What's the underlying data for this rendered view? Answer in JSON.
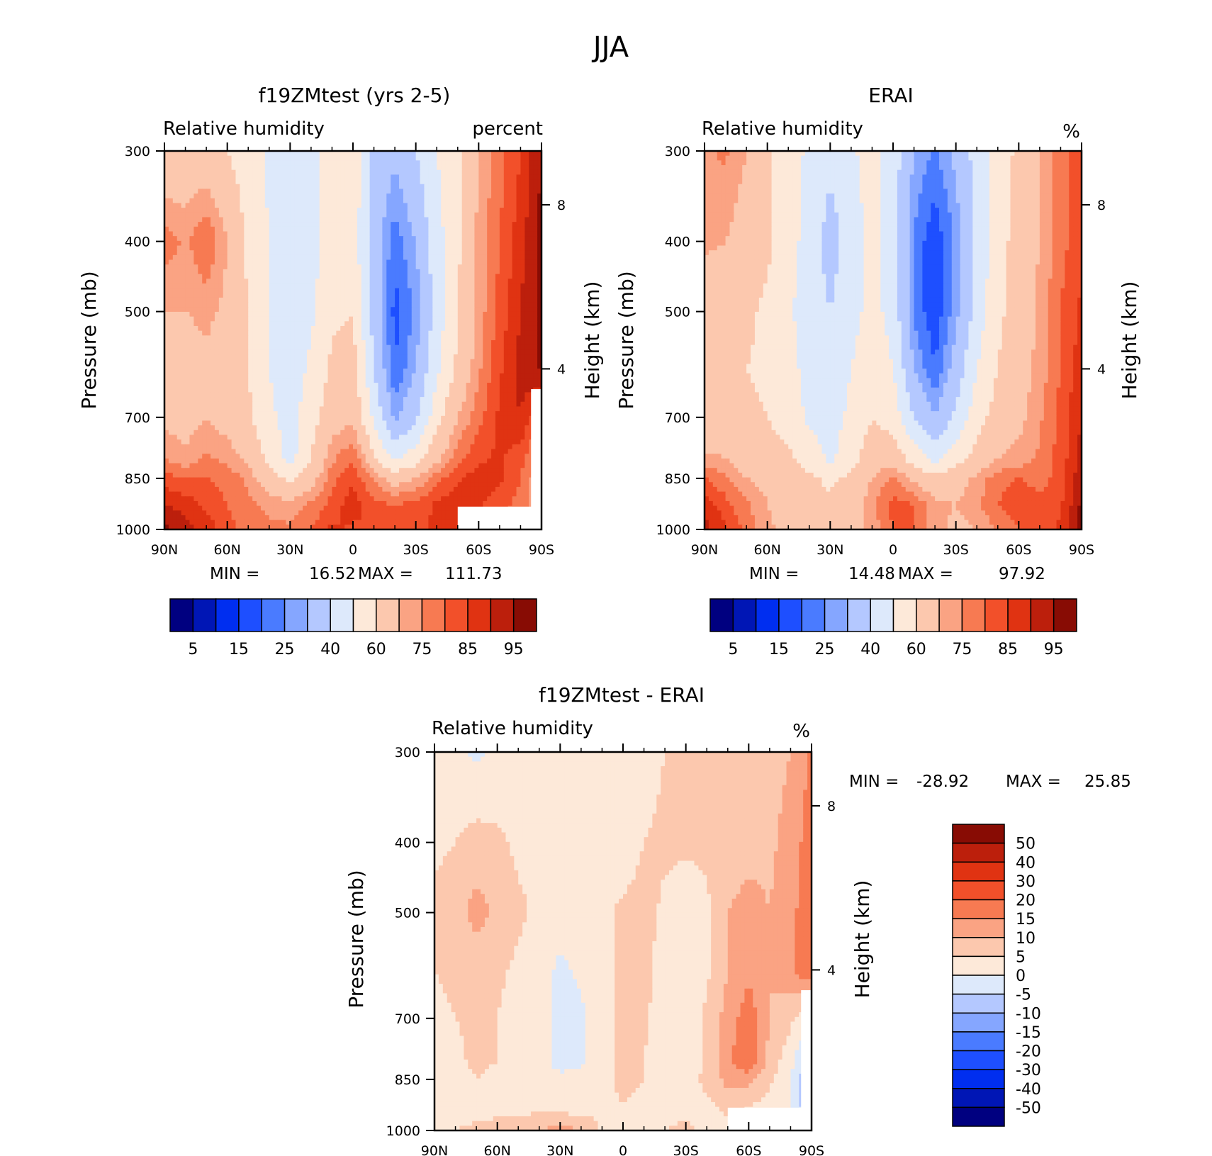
{
  "figure_title": "JJA",
  "chart_data": [
    {
      "type": "heatmap",
      "title": "f19ZMtest (yrs 2-5)",
      "left_label": "Relative humidity",
      "right_label": "percent",
      "xlabel": "",
      "ylabel": "Pressure (mb)",
      "right_axis_label": "Height (km)",
      "x_ticks": [
        "90N",
        "60N",
        "30N",
        "0",
        "30S",
        "60S",
        "90S"
      ],
      "y_ticks": [
        "300",
        "400",
        "500",
        "700",
        "850",
        "1000"
      ],
      "y_tick_values": [
        300,
        400,
        500,
        700,
        850,
        1000
      ],
      "right_ticks": [
        "8",
        "4"
      ],
      "ylim": [
        1000,
        300
      ],
      "xlim": [
        90,
        -90
      ],
      "min_label": "MIN =",
      "min_value": "16.52",
      "max_label": "MAX =",
      "max_value": "111.73",
      "colorbar_labels": [
        "5",
        "15",
        "25",
        "40",
        "60",
        "75",
        "85",
        "95"
      ],
      "field": {
        "lat": [
          90,
          80,
          70,
          60,
          50,
          40,
          30,
          20,
          10,
          0,
          -10,
          -20,
          -30,
          -40,
          -50,
          -60,
          -70,
          -80,
          -90
        ],
        "plev": [
          300,
          400,
          500,
          600,
          700,
          800,
          850,
          925,
          1000
        ],
        "values": [
          [
            62,
            63,
            64,
            60,
            55,
            48,
            43,
            46,
            56,
            58,
            38,
            32,
            40,
            50,
            58,
            70,
            78,
            85,
            95
          ],
          [
            78,
            74,
            80,
            70,
            58,
            50,
            42,
            46,
            56,
            55,
            34,
            22,
            30,
            46,
            58,
            72,
            80,
            88,
            97
          ],
          [
            70,
            70,
            72,
            68,
            60,
            50,
            42,
            48,
            58,
            60,
            36,
            18,
            26,
            44,
            60,
            72,
            82,
            90,
            97
          ],
          [
            66,
            65,
            68,
            64,
            60,
            50,
            44,
            52,
            62,
            64,
            40,
            20,
            30,
            48,
            62,
            74,
            84,
            92,
            96
          ],
          [
            68,
            66,
            70,
            66,
            62,
            52,
            46,
            56,
            66,
            68,
            48,
            28,
            38,
            56,
            70,
            78,
            86,
            90,
            80
          ],
          [
            75,
            72,
            76,
            74,
            68,
            58,
            46,
            60,
            74,
            80,
            62,
            48,
            56,
            68,
            78,
            84,
            86,
            82,
            70
          ],
          [
            82,
            80,
            80,
            78,
            74,
            64,
            58,
            66,
            78,
            84,
            74,
            66,
            70,
            78,
            84,
            88,
            86,
            80,
            70
          ],
          [
            90,
            88,
            84,
            80,
            76,
            74,
            72,
            76,
            82,
            88,
            82,
            80,
            82,
            86,
            88,
            86,
            82,
            78,
            70
          ],
          [
            96,
            92,
            88,
            82,
            78,
            76,
            76,
            80,
            86,
            84,
            84,
            84,
            84,
            86,
            88,
            84,
            80,
            76,
            70
          ]
        ]
      },
      "missing_box": {
        "lat_from": -50,
        "lat_to": -90,
        "plev_from": 930,
        "plev_to": 1000
      },
      "missing_strip": {
        "lat_from": -85,
        "lat_to": -90,
        "plev_from": 640,
        "plev_to": 1000
      }
    },
    {
      "type": "heatmap",
      "title": "ERAI",
      "left_label": "Relative humidity",
      "right_label": "%",
      "xlabel": "",
      "ylabel": "Pressure (mb)",
      "right_axis_label": "Height (km)",
      "x_ticks": [
        "90N",
        "60N",
        "30N",
        "0",
        "30S",
        "60S",
        "90S"
      ],
      "y_ticks": [
        "300",
        "400",
        "500",
        "700",
        "850",
        "1000"
      ],
      "y_tick_values": [
        300,
        400,
        500,
        700,
        850,
        1000
      ],
      "right_ticks": [
        "8",
        "4"
      ],
      "ylim": [
        1000,
        300
      ],
      "xlim": [
        90,
        -90
      ],
      "min_label": "MIN =",
      "min_value": "14.48",
      "max_label": "MAX =",
      "max_value": "97.92",
      "colorbar_labels": [
        "5",
        "15",
        "25",
        "40",
        "60",
        "75",
        "85",
        "95"
      ],
      "field": {
        "lat": [
          90,
          80,
          70,
          60,
          50,
          40,
          30,
          20,
          10,
          0,
          -10,
          -20,
          -30,
          -40,
          -50,
          -60,
          -70,
          -80,
          -90
        ],
        "plev": [
          300,
          400,
          500,
          600,
          700,
          800,
          850,
          925,
          1000
        ],
        "values": [
          [
            74,
            76,
            70,
            62,
            55,
            48,
            42,
            48,
            55,
            45,
            30,
            24,
            32,
            44,
            55,
            62,
            70,
            78,
            82
          ],
          [
            72,
            70,
            66,
            62,
            54,
            46,
            36,
            44,
            54,
            44,
            24,
            16,
            26,
            42,
            56,
            64,
            70,
            78,
            84
          ],
          [
            62,
            64,
            62,
            58,
            52,
            44,
            40,
            46,
            54,
            46,
            24,
            16,
            28,
            44,
            58,
            64,
            72,
            80,
            86
          ],
          [
            60,
            62,
            60,
            58,
            54,
            46,
            44,
            50,
            58,
            50,
            30,
            20,
            34,
            50,
            60,
            66,
            72,
            80,
            88
          ],
          [
            62,
            64,
            62,
            60,
            56,
            48,
            46,
            52,
            60,
            56,
            40,
            30,
            42,
            56,
            64,
            68,
            74,
            82,
            90
          ],
          [
            72,
            70,
            66,
            64,
            62,
            56,
            48,
            56,
            66,
            66,
            56,
            48,
            56,
            64,
            70,
            72,
            76,
            82,
            92
          ],
          [
            80,
            76,
            70,
            68,
            66,
            62,
            58,
            62,
            70,
            76,
            68,
            62,
            66,
            72,
            78,
            80,
            78,
            82,
            94
          ],
          [
            88,
            82,
            76,
            70,
            66,
            64,
            62,
            66,
            74,
            82,
            80,
            72,
            70,
            74,
            80,
            84,
            82,
            84,
            96
          ],
          [
            92,
            86,
            78,
            72,
            66,
            64,
            64,
            66,
            72,
            80,
            80,
            72,
            68,
            70,
            76,
            80,
            82,
            86,
            98
          ]
        ]
      }
    },
    {
      "type": "heatmap",
      "title": "f19ZMtest - ERAI",
      "left_label": "Relative humidity",
      "right_label": "%",
      "xlabel": "",
      "ylabel": "Pressure (mb)",
      "right_axis_label": "Height (km)",
      "x_ticks": [
        "90N",
        "60N",
        "30N",
        "0",
        "30S",
        "60S",
        "90S"
      ],
      "y_ticks": [
        "300",
        "400",
        "500",
        "700",
        "850",
        "1000"
      ],
      "y_tick_values": [
        300,
        400,
        500,
        700,
        850,
        1000
      ],
      "right_ticks": [
        "8",
        "4"
      ],
      "ylim": [
        1000,
        300
      ],
      "xlim": [
        90,
        -90
      ],
      "min_label": "MIN =",
      "min_value": "-28.92",
      "max_label": "MAX =",
      "max_value": "25.85",
      "colorbar_labels": [
        "50",
        "40",
        "30",
        "20",
        "15",
        "10",
        "5",
        "0",
        "-5",
        "-10",
        "-15",
        "-20",
        "-30",
        "-40",
        "-50"
      ],
      "field": {
        "lat": [
          90,
          80,
          70,
          60,
          50,
          40,
          30,
          20,
          10,
          0,
          -10,
          -20,
          -30,
          -40,
          -50,
          -60,
          -70,
          -80,
          -90
        ],
        "plev": [
          300,
          400,
          500,
          600,
          700,
          800,
          850,
          925,
          1000
        ],
        "values": [
          [
            2,
            1,
            -1,
            1,
            2,
            3,
            3,
            2,
            1,
            2,
            3,
            5,
            6,
            6,
            6,
            8,
            8,
            10,
            16
          ],
          [
            4,
            5,
            7,
            6,
            4,
            3,
            3,
            2,
            2,
            2,
            5,
            6,
            6,
            6,
            7,
            8,
            9,
            12,
            18
          ],
          [
            6,
            8,
            12,
            9,
            6,
            4,
            2,
            2,
            4,
            6,
            7,
            4,
            2,
            4,
            10,
            12,
            10,
            13,
            20
          ],
          [
            5,
            6,
            7,
            6,
            4,
            2,
            -1,
            1,
            3,
            6,
            7,
            2,
            2,
            4,
            10,
            14,
            10,
            14,
            20
          ],
          [
            4,
            5,
            6,
            5,
            3,
            2,
            -2,
            -1,
            3,
            6,
            6,
            2,
            2,
            6,
            12,
            18,
            10,
            6,
            0
          ],
          [
            3,
            4,
            6,
            5,
            3,
            2,
            -2,
            -1,
            4,
            6,
            5,
            2,
            2,
            6,
            14,
            20,
            8,
            2,
            -8
          ],
          [
            3,
            3,
            5,
            4,
            3,
            3,
            1,
            2,
            4,
            6,
            5,
            3,
            3,
            6,
            12,
            12,
            6,
            0,
            -12
          ],
          [
            3,
            2,
            3,
            3,
            3,
            3,
            2,
            2,
            4,
            5,
            4,
            3,
            4,
            4,
            6,
            5,
            3,
            0,
            -10
          ],
          [
            4,
            5,
            6,
            7,
            8,
            10,
            12,
            10,
            4,
            1,
            3,
            5,
            6,
            4,
            4,
            3,
            1,
            0,
            -8
          ]
        ]
      },
      "missing_box": {
        "lat_from": -50,
        "lat_to": -90,
        "plev_from": 930,
        "plev_to": 1000
      },
      "missing_strip": {
        "lat_from": -85,
        "lat_to": -90,
        "plev_from": 640,
        "plev_to": 1000
      }
    }
  ],
  "colors": {
    "abs_scale": [
      "#000080",
      "#0016b5",
      "#002ef0",
      "#1e4fff",
      "#4a7bff",
      "#85a6ff",
      "#b4c8ff",
      "#dde9fb",
      "#fde9d9",
      "#fcc8ae",
      "#faa383",
      "#f77a52",
      "#f2502a",
      "#e03312",
      "#bc1f0c",
      "#880c04"
    ],
    "diff_scale": [
      "#000080",
      "#0016b5",
      "#002ef0",
      "#1e4fff",
      "#4a7bff",
      "#85a6ff",
      "#b4c8ff",
      "#dde9fb",
      "#fde9d9",
      "#fcc8ae",
      "#faa383",
      "#f77a52",
      "#f2502a",
      "#e03312",
      "#bc1f0c",
      "#880c04"
    ]
  }
}
